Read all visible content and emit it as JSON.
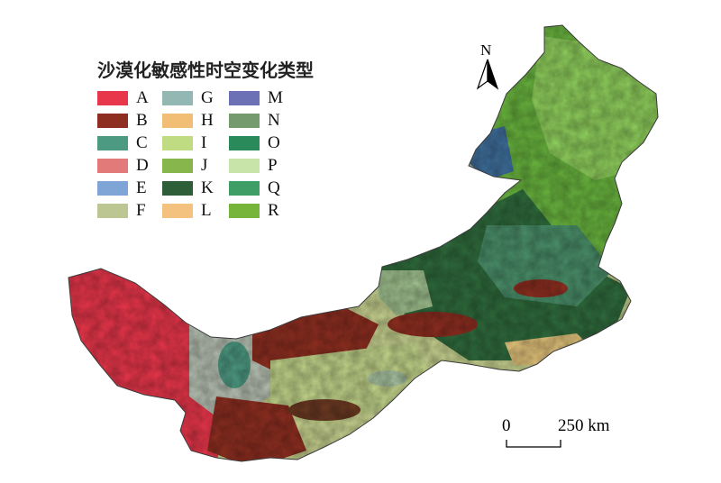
{
  "legend": {
    "title": "沙漠化敏感性时空变化类型",
    "items": [
      {
        "label": "A",
        "color": "#e8364a"
      },
      {
        "label": "B",
        "color": "#8e2e20"
      },
      {
        "label": "C",
        "color": "#4d9a82"
      },
      {
        "label": "D",
        "color": "#e27a7a"
      },
      {
        "label": "E",
        "color": "#7fa4d6"
      },
      {
        "label": "F",
        "color": "#bcc693"
      },
      {
        "label": "G",
        "color": "#93b8b4"
      },
      {
        "label": "H",
        "color": "#f2be76"
      },
      {
        "label": "I",
        "color": "#bfdc82"
      },
      {
        "label": "J",
        "color": "#86b64c"
      },
      {
        "label": "K",
        "color": "#2e5e38"
      },
      {
        "label": "L",
        "color": "#f3c27e"
      },
      {
        "label": "M",
        "color": "#6c70b4"
      },
      {
        "label": "N",
        "color": "#749a6e"
      },
      {
        "label": "O",
        "color": "#2a8a5a"
      },
      {
        "label": "P",
        "color": "#c8e4a8"
      },
      {
        "label": "Q",
        "color": "#3e9e66"
      },
      {
        "label": "R",
        "color": "#76b43a"
      }
    ]
  },
  "north_arrow": {
    "label": "N"
  },
  "scale_bar": {
    "start": "0",
    "end": "250 km"
  }
}
